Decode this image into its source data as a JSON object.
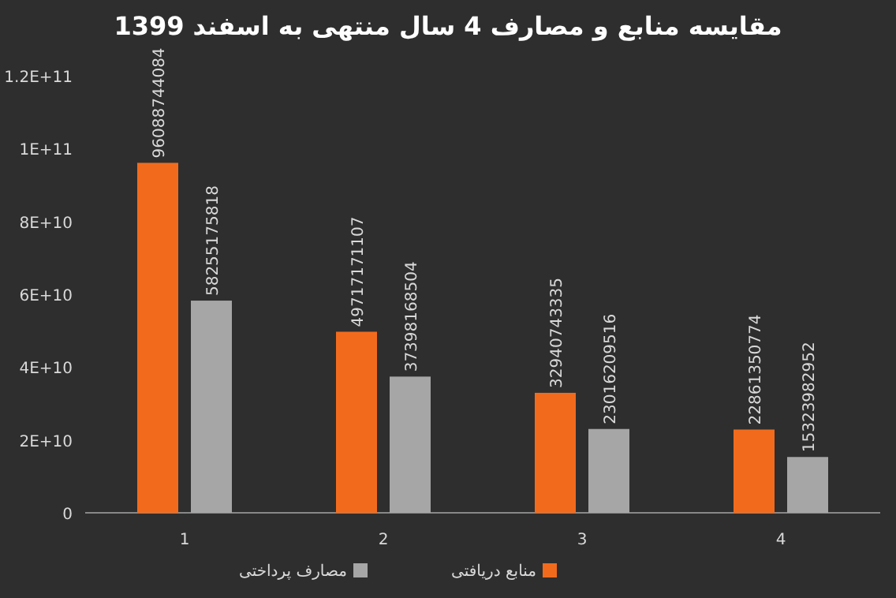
{
  "chart_data": {
    "type": "bar",
    "title": "مقایسه منابع و مصارف 4 سال منتهی به اسفند 1399",
    "categories": [
      "1",
      "2",
      "3",
      "4"
    ],
    "series": [
      {
        "name": "منابع دریافتی",
        "color": "#f26b1d",
        "values": [
          96088744084,
          49717171107,
          32940743335,
          22861350774
        ]
      },
      {
        "name": "مصارف پرداختی",
        "color": "#a6a6a6",
        "values": [
          58255175818,
          37398168504,
          23016209516,
          15323982952
        ]
      }
    ],
    "ylim": [
      0,
      120000000000
    ],
    "yticks": [
      0,
      {
        "value": 20000000000,
        "label": "2E+10"
      },
      {
        "value": 40000000000,
        "label": "4E+10"
      },
      {
        "value": 60000000000,
        "label": "6E+10"
      },
      {
        "value": 80000000000,
        "label": "8E+10"
      },
      {
        "value": 100000000000,
        "label": "1E+11"
      },
      {
        "value": 120000000000,
        "label": "1.2E+11"
      }
    ],
    "data_labels": true,
    "legend": "bottom"
  }
}
